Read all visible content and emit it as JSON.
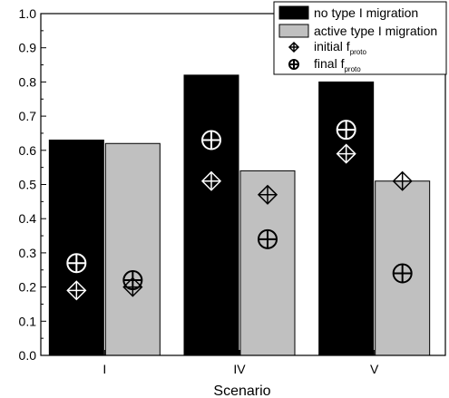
{
  "chart_data": {
    "type": "bar",
    "title": "",
    "xlabel": "Scenario",
    "ylabel": "",
    "ylim": [
      0,
      1.0
    ],
    "yticks": [
      0.0,
      0.1,
      0.2,
      0.3,
      0.4,
      0.5,
      0.6,
      0.7,
      0.8,
      0.9,
      1.0
    ],
    "ytick_labels": [
      "0.0",
      "0.1",
      "0.2",
      "0.3",
      "0.4",
      "0.5",
      "0.6",
      "0.7",
      "0.8",
      "0.9",
      "1.0"
    ],
    "categories": [
      "I",
      "IV",
      "V"
    ],
    "series": [
      {
        "name": "no type I migration",
        "color": "#000000",
        "values": [
          0.63,
          0.82,
          0.8
        ]
      },
      {
        "name": "active type I migration",
        "color": "#c0c0c0",
        "values": [
          0.62,
          0.54,
          0.51
        ]
      }
    ],
    "markers": [
      {
        "name_main": "initial f",
        "name_sub": "proto",
        "symbol": "diamond-cross",
        "values_no_migration": [
          0.19,
          0.51,
          0.59
        ],
        "values_active_migration": [
          0.2,
          0.47,
          0.51
        ]
      },
      {
        "name_main": "final f",
        "name_sub": "proto",
        "symbol": "circle-cross",
        "values_no_migration": [
          0.27,
          0.63,
          0.66
        ],
        "values_active_migration": [
          0.22,
          0.34,
          0.24
        ]
      }
    ],
    "grid": false,
    "legend_position": "top-right"
  }
}
